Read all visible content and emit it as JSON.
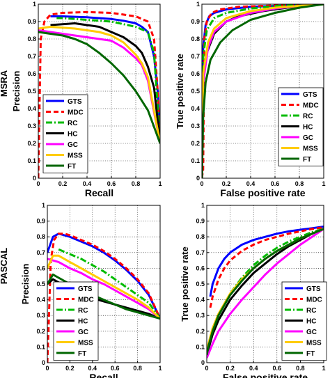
{
  "figure": {
    "row_labels": [
      "MSRA",
      "PASCAL"
    ]
  },
  "chart_data": [
    {
      "type": "line",
      "xlabel": "Recall",
      "ylabel": "Precision",
      "xlim": [
        0,
        1
      ],
      "ylim": [
        0,
        1
      ],
      "xticks": [
        "0",
        "0.2",
        "0.4",
        "0.6",
        "0.8",
        "1"
      ],
      "yticks": [
        "0",
        "0.1",
        "0.2",
        "0.3",
        "0.4",
        "0.5",
        "0.6",
        "0.7",
        "0.8",
        "0.9",
        "1"
      ],
      "grid": true,
      "legend_position": "bottom-left",
      "series": [
        {
          "name": "GTS",
          "color": "#0000ff",
          "style": "solid",
          "x": [
            0.1,
            0.2,
            0.4,
            0.6,
            0.7,
            0.8,
            0.85,
            0.9,
            0.95,
            0.98,
            1.0
          ],
          "y": [
            0.93,
            0.93,
            0.925,
            0.915,
            0.905,
            0.89,
            0.87,
            0.84,
            0.7,
            0.5,
            0.2
          ]
        },
        {
          "name": "MDC",
          "color": "#ff0000",
          "style": "dashed",
          "x": [
            0.0,
            0.02,
            0.05,
            0.1,
            0.2,
            0.4,
            0.6,
            0.8,
            0.9,
            0.95,
            0.98,
            1.0
          ],
          "y": [
            0.0,
            0.8,
            0.9,
            0.94,
            0.95,
            0.955,
            0.95,
            0.93,
            0.9,
            0.8,
            0.5,
            0.2
          ]
        },
        {
          "name": "RC",
          "color": "#00bb00",
          "style": "dashdot",
          "x": [
            0.15,
            0.2,
            0.4,
            0.6,
            0.8,
            0.9,
            0.95,
            1.0
          ],
          "y": [
            0.92,
            0.92,
            0.91,
            0.9,
            0.87,
            0.84,
            0.72,
            0.2
          ]
        },
        {
          "name": "HC",
          "color": "#000000",
          "style": "solid",
          "x": [
            0.1,
            0.3,
            0.5,
            0.6,
            0.7,
            0.8,
            0.85,
            0.9,
            0.95,
            1.0
          ],
          "y": [
            0.88,
            0.89,
            0.87,
            0.84,
            0.81,
            0.76,
            0.72,
            0.64,
            0.52,
            0.2
          ]
        },
        {
          "name": "GC",
          "color": "#ff00ff",
          "style": "solid",
          "x": [
            0.0,
            0.1,
            0.3,
            0.5,
            0.6,
            0.7,
            0.8,
            0.85,
            0.9,
            1.0
          ],
          "y": [
            0.85,
            0.84,
            0.82,
            0.8,
            0.79,
            0.75,
            0.69,
            0.65,
            0.56,
            0.2
          ]
        },
        {
          "name": "MSS",
          "color": "#ffcc00",
          "style": "solid",
          "x": [
            0.0,
            0.1,
            0.3,
            0.5,
            0.6,
            0.7,
            0.8,
            0.85,
            0.9,
            1.0
          ],
          "y": [
            0.86,
            0.87,
            0.86,
            0.84,
            0.82,
            0.78,
            0.71,
            0.66,
            0.58,
            0.2
          ]
        },
        {
          "name": "FT",
          "color": "#006600",
          "style": "solid",
          "x": [
            0.0,
            0.1,
            0.2,
            0.3,
            0.4,
            0.5,
            0.6,
            0.7,
            0.8,
            0.9,
            1.0
          ],
          "y": [
            0.84,
            0.83,
            0.82,
            0.8,
            0.77,
            0.72,
            0.66,
            0.59,
            0.5,
            0.39,
            0.2
          ]
        }
      ]
    },
    {
      "type": "line",
      "xlabel": "False positive rate",
      "ylabel": "True positive rate",
      "xlim": [
        0,
        1
      ],
      "ylim": [
        0,
        1
      ],
      "xticks": [
        "0",
        "0.2",
        "0.4",
        "0.6",
        "0.8",
        "1"
      ],
      "yticks": [
        "0",
        "0.1",
        "0.2",
        "0.3",
        "0.4",
        "0.5",
        "0.6",
        "0.7",
        "0.8",
        "0.9",
        "1"
      ],
      "grid": true,
      "legend_position": "bottom-right",
      "series": [
        {
          "name": "GTS",
          "color": "#0000ff",
          "style": "solid",
          "x": [
            0.0,
            0.01,
            0.03,
            0.06,
            0.1,
            0.2,
            0.4,
            0.6,
            0.8,
            1.0
          ],
          "y": [
            0.0,
            0.75,
            0.88,
            0.93,
            0.95,
            0.97,
            0.985,
            0.99,
            0.995,
            1.0
          ]
        },
        {
          "name": "MDC",
          "color": "#ff0000",
          "style": "dashed",
          "x": [
            0.0,
            0.01,
            0.02,
            0.04,
            0.08,
            0.15,
            0.3,
            0.5,
            0.7,
            1.0
          ],
          "y": [
            0.0,
            0.05,
            0.8,
            0.9,
            0.95,
            0.97,
            0.985,
            0.99,
            0.995,
            1.0
          ]
        },
        {
          "name": "RC",
          "color": "#00bb00",
          "style": "dashdot",
          "x": [
            0.0,
            0.01,
            0.04,
            0.1,
            0.2,
            0.4,
            0.6,
            0.8,
            1.0
          ],
          "y": [
            0.0,
            0.7,
            0.85,
            0.92,
            0.95,
            0.975,
            0.99,
            0.995,
            1.0
          ]
        },
        {
          "name": "HC",
          "color": "#000000",
          "style": "solid",
          "x": [
            0.0,
            0.01,
            0.04,
            0.1,
            0.2,
            0.3,
            0.5,
            0.7,
            0.9,
            1.0
          ],
          "y": [
            0.0,
            0.55,
            0.72,
            0.83,
            0.9,
            0.93,
            0.96,
            0.98,
            0.995,
            1.0
          ]
        },
        {
          "name": "GC",
          "color": "#ff00ff",
          "style": "solid",
          "x": [
            0.0,
            0.01,
            0.05,
            0.1,
            0.2,
            0.4,
            0.6,
            0.8,
            1.0
          ],
          "y": [
            0.0,
            0.55,
            0.75,
            0.84,
            0.9,
            0.95,
            0.975,
            0.99,
            1.0
          ]
        },
        {
          "name": "MSS",
          "color": "#ffcc00",
          "style": "solid",
          "x": [
            0.0,
            0.01,
            0.05,
            0.1,
            0.2,
            0.4,
            0.6,
            0.8,
            1.0
          ],
          "y": [
            0.0,
            0.6,
            0.78,
            0.86,
            0.92,
            0.96,
            0.98,
            0.99,
            1.0
          ]
        },
        {
          "name": "FT",
          "color": "#006600",
          "style": "solid",
          "x": [
            0.0,
            0.01,
            0.03,
            0.07,
            0.15,
            0.25,
            0.4,
            0.6,
            0.8,
            1.0
          ],
          "y": [
            0.0,
            0.35,
            0.55,
            0.68,
            0.78,
            0.85,
            0.91,
            0.95,
            0.98,
            1.0
          ]
        }
      ]
    },
    {
      "type": "line",
      "xlabel": "Recall",
      "ylabel": "Precision",
      "xlim": [
        0,
        1
      ],
      "ylim": [
        0,
        1
      ],
      "xticks": [
        "0",
        "0.2",
        "0.4",
        "0.6",
        "0.8",
        "1"
      ],
      "yticks": [
        "0",
        "0.1",
        "0.2",
        "0.3",
        "0.4",
        "0.5",
        "0.6",
        "0.7",
        "0.8",
        "0.9",
        "1"
      ],
      "grid": true,
      "legend_position": "bottom-center",
      "series": [
        {
          "name": "GTS",
          "color": "#0000ff",
          "style": "solid",
          "x": [
            0.0,
            0.05,
            0.1,
            0.2,
            0.3,
            0.4,
            0.5,
            0.6,
            0.7,
            0.8,
            0.9,
            1.0
          ],
          "y": [
            0.7,
            0.8,
            0.82,
            0.8,
            0.77,
            0.74,
            0.7,
            0.65,
            0.59,
            0.52,
            0.43,
            0.28
          ]
        },
        {
          "name": "MDC",
          "color": "#ff0000",
          "style": "dashed",
          "x": [
            0.0,
            0.01,
            0.03,
            0.06,
            0.1,
            0.15,
            0.2,
            0.3,
            0.4,
            0.5,
            0.6,
            0.7,
            0.8,
            0.9,
            1.0
          ],
          "y": [
            0.0,
            0.2,
            0.65,
            0.78,
            0.82,
            0.82,
            0.81,
            0.78,
            0.75,
            0.71,
            0.66,
            0.6,
            0.53,
            0.44,
            0.28
          ]
        },
        {
          "name": "RC",
          "color": "#00bb00",
          "style": "dashdot",
          "x": [
            0.1,
            0.2,
            0.3,
            0.4,
            0.5,
            0.6,
            0.7,
            0.8,
            0.9,
            1.0
          ],
          "y": [
            0.72,
            0.69,
            0.66,
            0.62,
            0.58,
            0.53,
            0.48,
            0.43,
            0.38,
            0.28
          ]
        },
        {
          "name": "HC",
          "color": "#000000",
          "style": "solid",
          "x": [
            0.0,
            0.05,
            0.1,
            0.2,
            0.3,
            0.4,
            0.5,
            0.6,
            0.7,
            0.8,
            0.9,
            1.0
          ],
          "y": [
            0.5,
            0.53,
            0.51,
            0.47,
            0.44,
            0.41,
            0.39,
            0.37,
            0.35,
            0.33,
            0.31,
            0.28
          ]
        },
        {
          "name": "GC",
          "color": "#ff00ff",
          "style": "solid",
          "x": [
            0.0,
            0.1,
            0.2,
            0.3,
            0.4,
            0.5,
            0.6,
            0.7,
            0.8,
            0.9,
            1.0
          ],
          "y": [
            0.66,
            0.64,
            0.6,
            0.57,
            0.53,
            0.5,
            0.46,
            0.42,
            0.38,
            0.34,
            0.28
          ]
        },
        {
          "name": "MSS",
          "color": "#ffcc00",
          "style": "solid",
          "x": [
            0.0,
            0.05,
            0.1,
            0.2,
            0.3,
            0.4,
            0.5,
            0.6,
            0.7,
            0.8,
            0.9,
            1.0
          ],
          "y": [
            0.6,
            0.68,
            0.68,
            0.64,
            0.6,
            0.56,
            0.52,
            0.48,
            0.44,
            0.4,
            0.35,
            0.28
          ]
        },
        {
          "name": "FT",
          "color": "#006600",
          "style": "solid",
          "x": [
            0.0,
            0.05,
            0.1,
            0.2,
            0.3,
            0.4,
            0.5,
            0.6,
            0.7,
            0.8,
            0.9,
            1.0
          ],
          "y": [
            0.5,
            0.56,
            0.54,
            0.5,
            0.46,
            0.43,
            0.4,
            0.37,
            0.34,
            0.32,
            0.3,
            0.28
          ]
        }
      ]
    },
    {
      "type": "line",
      "xlabel": "False positive rate",
      "ylabel": "True positive rate",
      "xlim": [
        0,
        1
      ],
      "ylim": [
        0,
        1
      ],
      "xticks": [
        "0",
        "0.2",
        "0.4",
        "0.6",
        "0.8",
        "1"
      ],
      "yticks": [
        "0",
        "0.1",
        "0.2",
        "0.3",
        "0.4",
        "0.5",
        "0.6",
        "0.7",
        "0.8",
        "0.9",
        "1"
      ],
      "grid": true,
      "legend_position": "bottom-right",
      "series": [
        {
          "name": "GTS",
          "color": "#0000ff",
          "style": "solid",
          "x": [
            0.03,
            0.05,
            0.1,
            0.15,
            0.2,
            0.3,
            0.4,
            0.5,
            0.6,
            0.7,
            0.8,
            0.9,
            1.0
          ],
          "y": [
            0.42,
            0.5,
            0.6,
            0.66,
            0.7,
            0.75,
            0.78,
            0.8,
            0.82,
            0.835,
            0.845,
            0.855,
            0.865
          ]
        },
        {
          "name": "MDC",
          "color": "#ff0000",
          "style": "dashed",
          "x": [
            0.03,
            0.05,
            0.1,
            0.15,
            0.2,
            0.3,
            0.4,
            0.5,
            0.6,
            0.7,
            0.8,
            0.9,
            1.0
          ],
          "y": [
            0.35,
            0.42,
            0.53,
            0.6,
            0.65,
            0.71,
            0.75,
            0.78,
            0.8,
            0.82,
            0.835,
            0.85,
            0.86
          ]
        },
        {
          "name": "RC",
          "color": "#00bb00",
          "style": "dashdot",
          "x": [
            0.02,
            0.05,
            0.1,
            0.2,
            0.3,
            0.4,
            0.5,
            0.6,
            0.7,
            0.8,
            0.9,
            1.0
          ],
          "y": [
            0.1,
            0.2,
            0.3,
            0.44,
            0.54,
            0.62,
            0.68,
            0.73,
            0.77,
            0.8,
            0.83,
            0.85
          ]
        },
        {
          "name": "HC",
          "color": "#000000",
          "style": "solid",
          "x": [
            0.0,
            0.05,
            0.1,
            0.2,
            0.3,
            0.4,
            0.5,
            0.6,
            0.7,
            0.8,
            0.9,
            1.0
          ],
          "y": [
            0.05,
            0.18,
            0.27,
            0.4,
            0.49,
            0.57,
            0.63,
            0.69,
            0.74,
            0.78,
            0.82,
            0.85
          ]
        },
        {
          "name": "GC",
          "color": "#ff00ff",
          "style": "solid",
          "x": [
            0.0,
            0.05,
            0.1,
            0.2,
            0.3,
            0.4,
            0.5,
            0.6,
            0.7,
            0.8,
            0.9,
            1.0
          ],
          "y": [
            0.03,
            0.12,
            0.2,
            0.31,
            0.4,
            0.48,
            0.56,
            0.63,
            0.69,
            0.75,
            0.8,
            0.85
          ]
        },
        {
          "name": "MSS",
          "color": "#ffcc00",
          "style": "solid",
          "x": [
            0.0,
            0.05,
            0.1,
            0.2,
            0.3,
            0.4,
            0.5,
            0.6,
            0.7,
            0.8,
            0.9,
            1.0
          ],
          "y": [
            0.08,
            0.22,
            0.31,
            0.44,
            0.53,
            0.6,
            0.66,
            0.71,
            0.75,
            0.79,
            0.82,
            0.85
          ]
        },
        {
          "name": "FT",
          "color": "#006600",
          "style": "solid",
          "x": [
            0.0,
            0.02,
            0.05,
            0.1,
            0.2,
            0.3,
            0.4,
            0.5,
            0.6,
            0.7,
            0.8,
            0.9,
            1.0
          ],
          "y": [
            0.05,
            0.12,
            0.2,
            0.3,
            0.43,
            0.52,
            0.6,
            0.66,
            0.71,
            0.75,
            0.79,
            0.82,
            0.85
          ]
        }
      ]
    }
  ]
}
